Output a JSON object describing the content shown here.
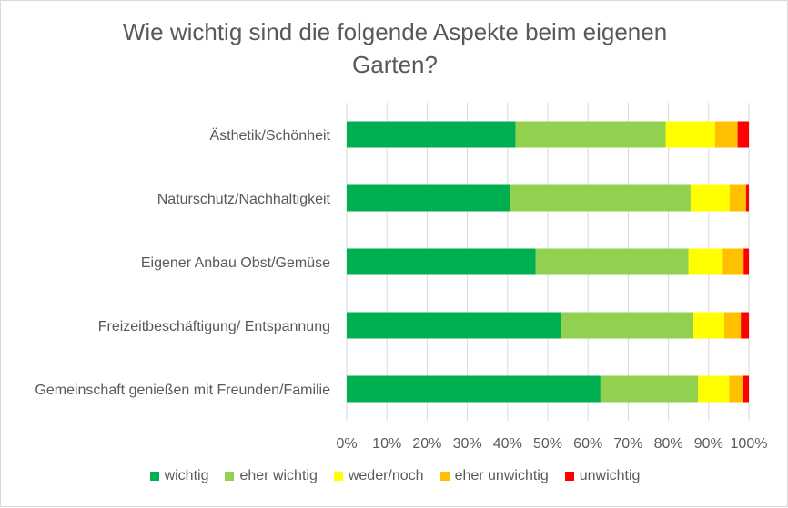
{
  "chart_data": {
    "type": "bar",
    "orientation": "horizontal",
    "stacked": "percent",
    "title": "Wie wichtig sind die folgende Aspekte beim eigenen Garten?",
    "title_lines": [
      "Wie wichtig sind die folgende Aspekte beim eigenen",
      "Garten?"
    ],
    "categories": [
      "Ästhetik/Schönheit",
      "Naturschutz/Nachhaltigkeit",
      "Eigener Anbau Obst/Gemüse",
      "Freizeitbeschäftigung/ Entspannung",
      "Gemeinschaft genießen mit Freunden/Familie"
    ],
    "series": [
      {
        "name": "wichtig",
        "color": "#00b050",
        "values": [
          42.0,
          40.5,
          47.0,
          53.2,
          63.1
        ]
      },
      {
        "name": "eher wichtig",
        "color": "#92d050",
        "values": [
          37.3,
          45.0,
          38.0,
          33.0,
          24.3
        ]
      },
      {
        "name": "weder/noch",
        "color": "#ffff00",
        "values": [
          12.3,
          9.7,
          8.5,
          7.7,
          7.7
        ]
      },
      {
        "name": "eher unwichtig",
        "color": "#ffc000",
        "values": [
          5.6,
          4.1,
          5.2,
          4.1,
          3.4
        ]
      },
      {
        "name": "unwichtig",
        "color": "#ff0000",
        "values": [
          2.8,
          0.7,
          1.3,
          2.0,
          1.5
        ]
      }
    ],
    "x_ticks": [
      "0%",
      "10%",
      "20%",
      "30%",
      "40%",
      "50%",
      "60%",
      "70%",
      "80%",
      "90%",
      "100%"
    ],
    "xlim": [
      0,
      100
    ],
    "grid": true,
    "legend_position": "bottom"
  }
}
